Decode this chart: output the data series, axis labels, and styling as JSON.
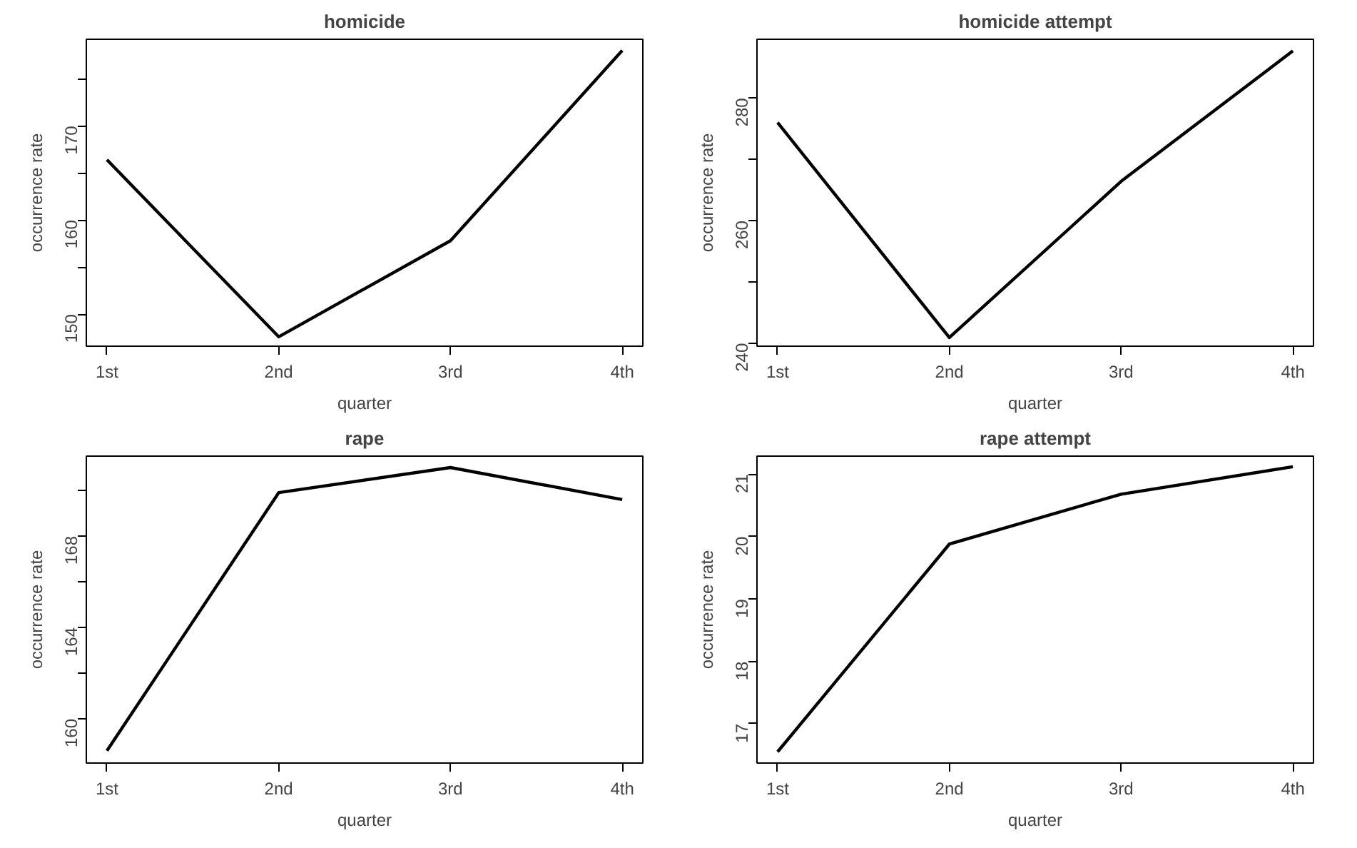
{
  "chart_data": [
    {
      "type": "line",
      "title": "homicide",
      "xlabel": "quarter",
      "ylabel": "occurrence rate",
      "categories": [
        "1st",
        "2nd",
        "3rd",
        "4th"
      ],
      "series": [
        {
          "color": "#000000",
          "values": [
            166.4,
            147.6,
            157.8,
            178.0
          ]
        }
      ],
      "ylim": [
        146.6,
        179.2
      ],
      "yticks": [
        150,
        {
          "value": 155,
          "label": null
        },
        160,
        {
          "value": 165,
          "label": null
        },
        170,
        {
          "value": 175,
          "label": null
        }
      ],
      "grid": false,
      "marker": "none",
      "line_style": "solid"
    },
    {
      "type": "line",
      "title": "homicide attempt",
      "xlabel": "quarter",
      "ylabel": "occurrence rate",
      "categories": [
        "1st",
        "2nd",
        "3rd",
        "4th"
      ],
      "series": [
        {
          "color": "#000000",
          "values": [
            276.0,
            240.9,
            266.4,
            287.7
          ]
        }
      ],
      "ylim": [
        239.5,
        289.6
      ],
      "yticks": [
        240,
        {
          "value": 250,
          "label": null
        },
        260,
        {
          "value": 270,
          "label": null
        },
        280
      ],
      "grid": false,
      "marker": "none",
      "line_style": "solid"
    },
    {
      "type": "line",
      "title": "rape",
      "xlabel": "quarter",
      "ylabel": "occurrence rate",
      "categories": [
        "1st",
        "2nd",
        "3rd",
        "4th"
      ],
      "series": [
        {
          "color": "#000000",
          "values": [
            158.6,
            169.9,
            171.0,
            169.6
          ]
        }
      ],
      "ylim": [
        158.06,
        171.5
      ],
      "yticks": [
        160,
        {
          "value": 162,
          "label": null
        },
        164,
        {
          "value": 166,
          "label": null
        },
        168,
        {
          "value": 170,
          "label": null
        }
      ],
      "grid": false,
      "marker": "none",
      "line_style": "solid"
    },
    {
      "type": "line",
      "title": "rape attempt",
      "xlabel": "quarter",
      "ylabel": "occurrence rate",
      "categories": [
        "1st",
        "2nd",
        "3rd",
        "4th"
      ],
      "series": [
        {
          "color": "#000000",
          "values": [
            16.55,
            19.88,
            20.68,
            21.12
          ]
        }
      ],
      "ylim": [
        16.37,
        21.29
      ],
      "yticks": [
        17,
        18,
        19,
        20,
        21
      ],
      "grid": false,
      "marker": "none",
      "line_style": "solid"
    }
  ]
}
